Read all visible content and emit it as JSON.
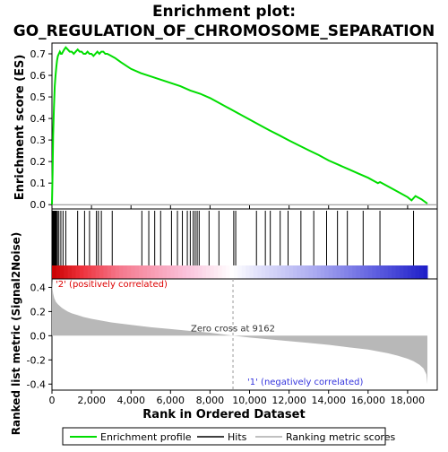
{
  "chart_data": {
    "type": "line",
    "title_line1": "Enrichment plot:",
    "title_line2": "GO_REGULATION_OF_CHROMOSOME_SEPARATION",
    "xlabel": "Rank in Ordered Dataset",
    "es_ylabel": "Enrichment score (ES)",
    "metric_ylabel": "Ranked list metric (Signal2Noise)",
    "x_ticks": [
      0,
      2000,
      4000,
      6000,
      8000,
      10000,
      12000,
      14000,
      16000,
      18000
    ],
    "x_tick_labels": [
      "0",
      "2,000",
      "4,000",
      "6,000",
      "8,000",
      "10,000",
      "12,000",
      "14,000",
      "16,000",
      "18,000"
    ],
    "xlim": [
      0,
      19500
    ],
    "n_genes": 19000,
    "es_ylim": [
      -0.02,
      0.75
    ],
    "es_ticks": [
      0.0,
      0.1,
      0.2,
      0.3,
      0.4,
      0.5,
      0.6,
      0.7
    ],
    "es_tick_labels": [
      "0.0",
      "0.1",
      "0.2",
      "0.3",
      "0.4",
      "0.5",
      "0.6",
      "0.7"
    ],
    "metric_ylim": [
      -0.45,
      0.47
    ],
    "metric_ticks": [
      0.4,
      0.2,
      0.0,
      -0.2,
      -0.4
    ],
    "metric_tick_labels": [
      "0.4",
      "0.2",
      "0.0",
      "-0.2",
      "-0.4"
    ],
    "zero_cross": 9162,
    "zero_cross_label": "Zero cross at 9162",
    "pos_label": "'2' (positively correlated)",
    "neg_label": "'1' (negatively correlated)",
    "series": [
      {
        "name": "Enrichment profile",
        "color": "#00dd00",
        "x": [
          0,
          30,
          60,
          100,
          140,
          180,
          220,
          260,
          300,
          350,
          400,
          450,
          500,
          560,
          620,
          700,
          800,
          900,
          1000,
          1100,
          1200,
          1300,
          1400,
          1500,
          1600,
          1700,
          1800,
          1900,
          2000,
          2100,
          2200,
          2300,
          2400,
          2500,
          2600,
          2700,
          2800,
          3000,
          3200,
          3500,
          4000,
          4500,
          5000,
          5500,
          6000,
          6500,
          7000,
          7500,
          8000,
          8500,
          9000,
          9500,
          10000,
          10500,
          11000,
          11500,
          12000,
          12500,
          13000,
          13500,
          14000,
          14500,
          15000,
          15500,
          16000,
          16500,
          16600,
          17000,
          17500,
          18000,
          18200,
          18400,
          18700,
          19000
        ],
        "y": [
          0.0,
          0.15,
          0.32,
          0.45,
          0.55,
          0.6,
          0.64,
          0.67,
          0.69,
          0.7,
          0.71,
          0.7,
          0.7,
          0.71,
          0.72,
          0.73,
          0.72,
          0.71,
          0.71,
          0.7,
          0.71,
          0.72,
          0.71,
          0.71,
          0.7,
          0.7,
          0.71,
          0.7,
          0.7,
          0.69,
          0.7,
          0.71,
          0.7,
          0.71,
          0.71,
          0.7,
          0.7,
          0.69,
          0.68,
          0.66,
          0.63,
          0.61,
          0.595,
          0.58,
          0.565,
          0.55,
          0.53,
          0.515,
          0.495,
          0.47,
          0.445,
          0.42,
          0.395,
          0.37,
          0.345,
          0.322,
          0.298,
          0.275,
          0.252,
          0.23,
          0.205,
          0.185,
          0.165,
          0.145,
          0.125,
          0.1,
          0.105,
          0.085,
          0.06,
          0.035,
          0.02,
          0.04,
          0.025,
          0.005
        ]
      },
      {
        "name": "Hits",
        "color": "#000000",
        "positions": [
          25,
          50,
          80,
          110,
          140,
          170,
          200,
          230,
          280,
          350,
          450,
          560,
          700,
          1300,
          1650,
          1900,
          2250,
          2350,
          2500,
          3050,
          4550,
          4900,
          5200,
          5500,
          6050,
          6350,
          6600,
          6850,
          7000,
          7150,
          7250,
          7350,
          7450,
          7950,
          8450,
          9200,
          9300,
          10350,
          10800,
          11050,
          11550,
          11950,
          12600,
          13250,
          13900,
          14450,
          14950,
          15750,
          16600,
          18300
        ]
      },
      {
        "name": "Ranking metric scores",
        "color": "#c0c0c0",
        "x": [
          0,
          20,
          60,
          120,
          200,
          300,
          400,
          500,
          650,
          800,
          1000,
          1300,
          1600,
          2000,
          2500,
          3000,
          4000,
          5000,
          6000,
          7000,
          8000,
          9162,
          10000,
          11000,
          12000,
          13000,
          14000,
          15000,
          16000,
          17000,
          17500,
          18000,
          18300,
          18600,
          18800,
          18950,
          19000
        ],
        "y": [
          0.46,
          0.4,
          0.35,
          0.31,
          0.28,
          0.26,
          0.245,
          0.23,
          0.215,
          0.2,
          0.185,
          0.17,
          0.155,
          0.14,
          0.125,
          0.11,
          0.09,
          0.07,
          0.055,
          0.04,
          0.025,
          0.0,
          -0.015,
          -0.03,
          -0.045,
          -0.06,
          -0.075,
          -0.095,
          -0.115,
          -0.145,
          -0.165,
          -0.19,
          -0.21,
          -0.24,
          -0.27,
          -0.32,
          -0.4
        ]
      }
    ],
    "legend_position": "bottom",
    "grid": false
  }
}
